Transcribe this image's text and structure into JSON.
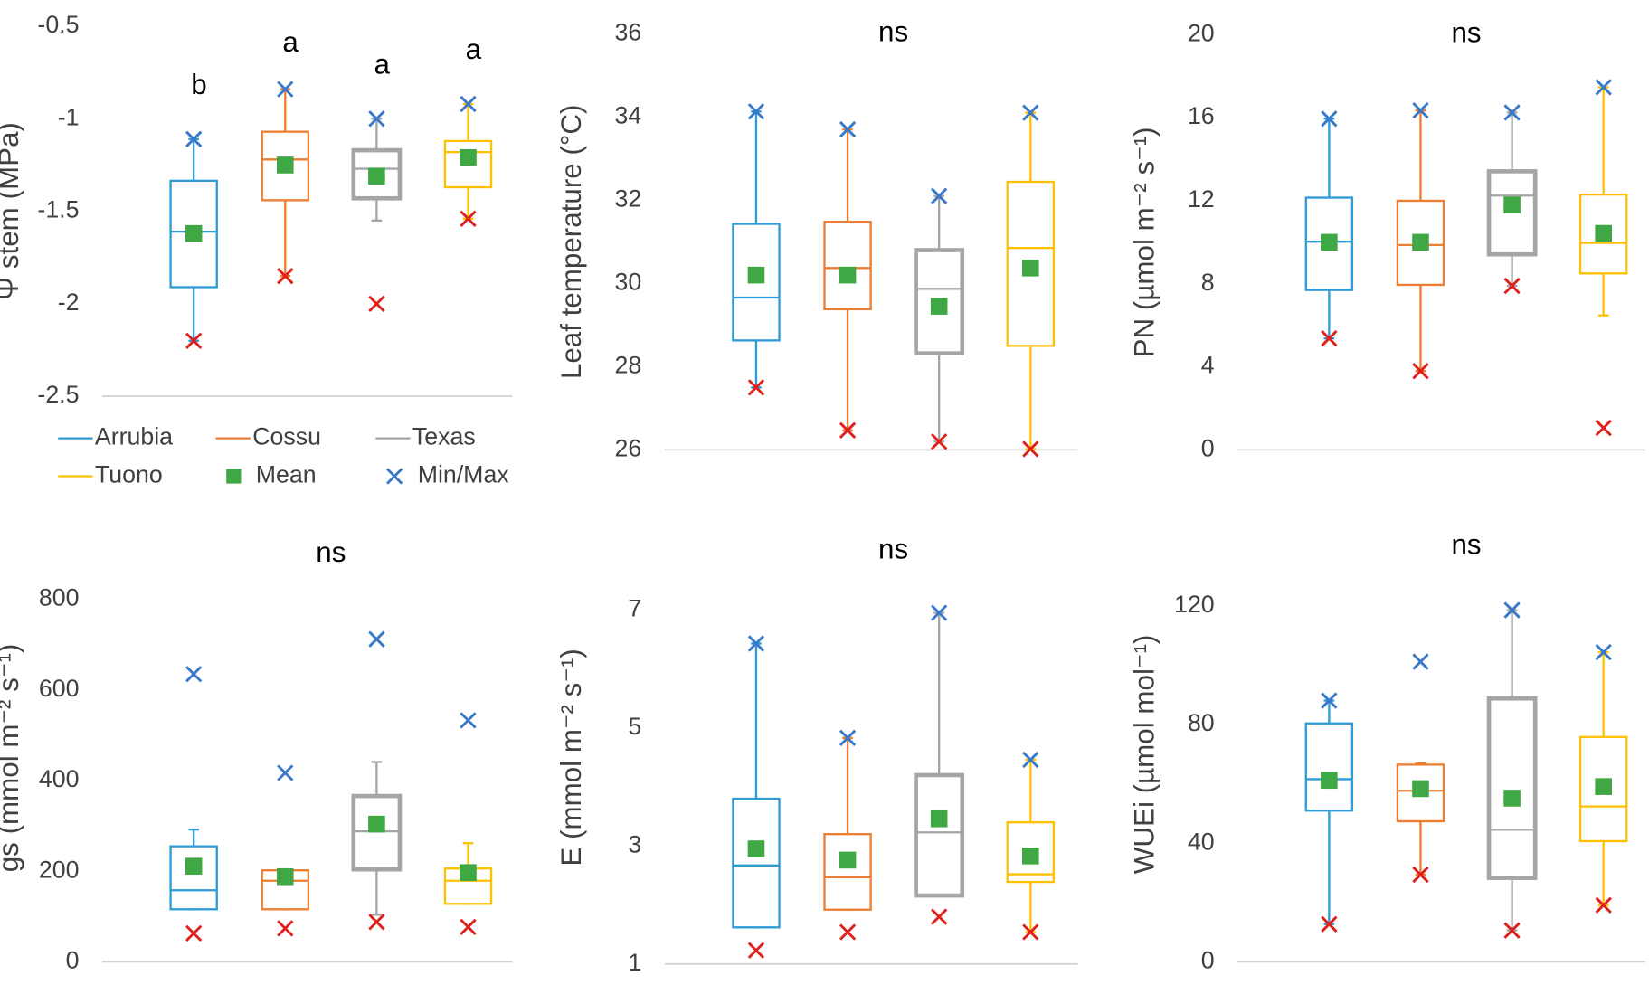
{
  "chart_data": [
    {
      "type": "box",
      "y_label": "Ψ stem (MPa)",
      "ylim": [
        -2.5,
        -0.5
      ],
      "yticks": [
        -2.5,
        -2,
        -1.5,
        -1,
        -0.5
      ],
      "letters": [
        "b",
        "a",
        "a",
        "a"
      ],
      "mean_color": "#3fa845",
      "max_color": "#3a78c9",
      "min_color": "#e0201b",
      "mean_label": "Mean",
      "minmax_label": "Min/Max",
      "series": [
        {
          "name": "Arrubia",
          "color": "#2e9bd6",
          "whisker_low": -2.2,
          "q1": -1.91,
          "median": -1.61,
          "q3": -1.335,
          "whisker_high": -1.11,
          "mean": -1.62,
          "min": -2.2,
          "max": -1.11
        },
        {
          "name": "Cossu",
          "color": "#ed7d31",
          "whisker_low": -1.85,
          "q1": -1.44,
          "median": -1.22,
          "q3": -1.07,
          "whisker_high": -0.84,
          "mean": -1.25,
          "min": -1.85,
          "max": -0.84
        },
        {
          "name": "Texas",
          "color": "#a5a5a5",
          "whisker_low": -1.55,
          "q1": -1.43,
          "median": -1.27,
          "q3": -1.17,
          "whisker_high": -1.0,
          "mean": -1.31,
          "min": -2.0,
          "max": -1.0
        },
        {
          "name": "Tuono",
          "color": "#ffc000",
          "whisker_low": -1.54,
          "q1": -1.37,
          "median": -1.18,
          "q3": -1.12,
          "whisker_high": -0.92,
          "mean": -1.21,
          "min": -1.54,
          "max": -0.92
        }
      ]
    },
    {
      "type": "box",
      "y_label": "Leaf temperature (°C)",
      "ylim": [
        26,
        36
      ],
      "yticks": [
        26,
        28,
        30,
        32,
        34,
        36
      ],
      "annotation": "ns",
      "mean_color": "#3fa845",
      "max_color": "#3a78c9",
      "min_color": "#e0201b",
      "series": [
        {
          "color": "#2e9bd6",
          "whisker_low": 27.5,
          "q1": 28.63,
          "median": 29.66,
          "q3": 31.43,
          "whisker_high": 34.13,
          "mean": 30.2,
          "min": 27.5,
          "max": 34.13
        },
        {
          "color": "#ed7d31",
          "whisker_low": 26.47,
          "q1": 29.38,
          "median": 30.37,
          "q3": 31.48,
          "whisker_high": 33.7,
          "mean": 30.2,
          "min": 26.47,
          "max": 33.7
        },
        {
          "color": "#a5a5a5",
          "whisker_low": 26.2,
          "q1": 28.32,
          "median": 29.87,
          "q3": 30.8,
          "whisker_high": 32.1,
          "mean": 29.45,
          "min": 26.2,
          "max": 32.1
        },
        {
          "color": "#ffc000",
          "whisker_low": 26.02,
          "q1": 28.5,
          "median": 30.85,
          "q3": 32.44,
          "whisker_high": 34.1,
          "mean": 30.37,
          "min": 26.02,
          "max": 34.1
        }
      ]
    },
    {
      "type": "box",
      "y_label": "PN (µmol m⁻² s⁻¹)",
      "ylim": [
        0,
        20
      ],
      "yticks": [
        0,
        4,
        8,
        12,
        16,
        20
      ],
      "annotation": "ns",
      "mean_color": "#3fa845",
      "max_color": "#3a78c9",
      "min_color": "#e0201b",
      "series": [
        {
          "color": "#2e9bd6",
          "whisker_low": 5.37,
          "q1": 7.7,
          "median": 10.03,
          "q3": 12.15,
          "whisker_high": 15.95,
          "mean": 10,
          "min": 5.37,
          "max": 15.95
        },
        {
          "color": "#ed7d31",
          "whisker_low": 3.8,
          "q1": 7.95,
          "median": 9.87,
          "q3": 12.0,
          "whisker_high": 16.35,
          "mean": 10,
          "min": 3.8,
          "max": 16.35
        },
        {
          "color": "#a5a5a5",
          "whisker_low": 7.9,
          "q1": 9.42,
          "median": 12.25,
          "q3": 13.42,
          "whisker_high": 16.25,
          "mean": 11.8,
          "min": 7.9,
          "max": 16.25
        },
        {
          "color": "#ffc000",
          "whisker_low": 6.48,
          "q1": 8.5,
          "median": 9.97,
          "q3": 12.3,
          "whisker_high": 17.47,
          "mean": 10.43,
          "min": 1.06,
          "max": 17.47
        }
      ]
    },
    {
      "type": "box",
      "y_label": "gs (mmol m⁻² s⁻¹)",
      "ylim": [
        0,
        900
      ],
      "yticks": [
        0,
        200,
        400,
        600,
        800
      ],
      "annotation": "ns",
      "mean_color": "#3fa845",
      "max_color": "#3a78c9",
      "min_color": "#e0201b",
      "series": [
        {
          "color": "#2e9bd6",
          "whisker_low": 116,
          "q1": 116,
          "median": 158,
          "q3": 255,
          "whisker_high": 292,
          "mean": 211,
          "min": 63,
          "max": 635
        },
        {
          "color": "#ed7d31",
          "whisker_low": 116,
          "q1": 116,
          "median": 179,
          "q3": 202,
          "whisker_high": 202,
          "mean": 188,
          "min": 74,
          "max": 417
        },
        {
          "color": "#a5a5a5",
          "whisker_low": 104,
          "q1": 204,
          "median": 288,
          "q3": 366,
          "whisker_high": 441,
          "mean": 304,
          "min": 88,
          "max": 712
        },
        {
          "color": "#ffc000",
          "whisker_low": 128,
          "q1": 128,
          "median": 179,
          "q3": 206,
          "whisker_high": 262,
          "mean": 197,
          "min": 77,
          "max": 533
        }
      ]
    },
    {
      "type": "box",
      "y_label": "E (mmol m⁻² s⁻¹)",
      "ylim": [
        1,
        8
      ],
      "yticks": [
        1,
        3,
        5,
        7
      ],
      "annotation": "ns",
      "mean_color": "#3fa845",
      "max_color": "#3a78c9",
      "min_color": "#e0201b",
      "series": [
        {
          "color": "#2e9bd6",
          "whisker_low": 1.62,
          "q1": 1.62,
          "median": 2.67,
          "q3": 3.8,
          "whisker_high": 6.43,
          "mean": 2.95,
          "min": 1.23,
          "max": 6.43
        },
        {
          "color": "#ed7d31",
          "whisker_low": 1.92,
          "q1": 1.92,
          "median": 2.47,
          "q3": 3.2,
          "whisker_high": 4.83,
          "mean": 2.76,
          "min": 1.54,
          "max": 4.83
        },
        {
          "color": "#a5a5a5",
          "whisker_low": 2.16,
          "q1": 2.16,
          "median": 3.23,
          "q3": 4.2,
          "whisker_high": 6.95,
          "mean": 3.46,
          "min": 1.8,
          "max": 6.95
        },
        {
          "color": "#ffc000",
          "whisker_low": 1.54,
          "q1": 2.39,
          "median": 2.52,
          "q3": 3.4,
          "whisker_high": 4.46,
          "mean": 2.83,
          "min": 1.54,
          "max": 4.46
        }
      ]
    },
    {
      "type": "box",
      "y_label": "WUEi (µmol mol⁻¹)",
      "ylim": [
        0,
        140
      ],
      "yticks": [
        0,
        40,
        80,
        120
      ],
      "annotation": "ns",
      "mean_color": "#3fa845",
      "max_color": "#3a78c9",
      "min_color": "#e0201b",
      "series": [
        {
          "color": "#2e9bd6",
          "whisker_low": 12.7,
          "q1": 51,
          "median": 61.6,
          "q3": 80.4,
          "whisker_high": 88.1,
          "mean": 61.2,
          "min": 12.7,
          "max": 88.1
        },
        {
          "color": "#ed7d31",
          "whisker_low": 29.4,
          "q1": 47.4,
          "median": 57.7,
          "q3": 66.5,
          "whisker_high": 66.9,
          "mean": 58.4,
          "min": 29.4,
          "max": 101.2
        },
        {
          "color": "#a5a5a5",
          "whisker_low": 10.6,
          "q1": 28.3,
          "median": 44.6,
          "q3": 88.8,
          "whisker_high": 118.6,
          "mean": 55.2,
          "min": 10.6,
          "max": 118.6
        },
        {
          "color": "#ffc000",
          "whisker_low": 19.1,
          "q1": 40.7,
          "median": 52.4,
          "q3": 75.8,
          "whisker_high": 104.4,
          "mean": 59.1,
          "min": 19.1,
          "max": 104.4
        }
      ]
    }
  ]
}
